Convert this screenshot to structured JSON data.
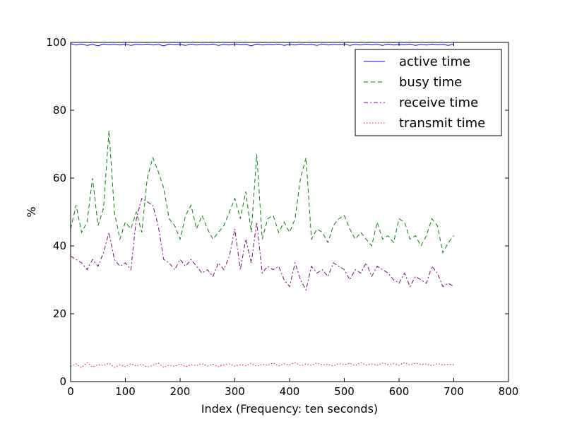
{
  "chart_data": {
    "type": "line",
    "title": "",
    "xlabel": "Index (Frequency: ten seconds)",
    "ylabel": "%",
    "xlim": [
      0,
      800
    ],
    "ylim": [
      0,
      100
    ],
    "xticks": [
      0,
      100,
      200,
      300,
      400,
      500,
      600,
      700,
      800
    ],
    "yticks": [
      0,
      20,
      40,
      60,
      80,
      100
    ],
    "grid": false,
    "legend_position": "top-right",
    "x_start": 0,
    "x_step": 10,
    "series": [
      {
        "name": "active time",
        "color": "#0000ff",
        "style": "solid",
        "values": [
          99.6,
          99.2,
          99.5,
          99.1,
          99.4,
          99.0,
          99.5,
          99.3,
          99.4,
          99.2,
          99.5,
          99.1,
          99.4,
          99.3,
          99.5,
          99.2,
          99.4,
          99.0,
          99.5,
          99.3,
          99.4,
          99.1,
          99.5,
          99.2,
          99.4,
          99.3,
          99.5,
          99.1,
          99.4,
          99.2,
          99.5,
          99.3,
          99.4,
          99.0,
          99.5,
          99.2,
          99.4,
          99.3,
          99.5,
          99.1,
          99.4,
          99.2,
          99.5,
          99.3,
          99.4,
          99.1,
          99.5,
          99.2,
          99.4,
          99.3,
          99.5,
          99.1,
          99.4,
          99.2,
          99.5,
          99.3,
          99.4,
          99.1,
          99.5,
          99.2,
          99.4,
          99.3,
          99.5,
          99.1,
          99.4,
          99.2,
          99.5,
          99.3,
          99.4,
          99.1,
          99.5
        ]
      },
      {
        "name": "busy time",
        "color": "#008000",
        "style": "dashed",
        "values": [
          45,
          52,
          44,
          47,
          60,
          46,
          51,
          74,
          50,
          42,
          47,
          45,
          50,
          44,
          60,
          66,
          62,
          57,
          48,
          46,
          42,
          49,
          52,
          45,
          49,
          45,
          42,
          44,
          46,
          50,
          54,
          48,
          56,
          44,
          67,
          42,
          48,
          49,
          44,
          47,
          44,
          48,
          60,
          66,
          42,
          45,
          44,
          41,
          46,
          48,
          49,
          45,
          42,
          44,
          42,
          40,
          47,
          42,
          43,
          41,
          48,
          47,
          42,
          43,
          40,
          43,
          48,
          46,
          38,
          41,
          43
        ]
      },
      {
        "name": "receive time",
        "color": "#800080",
        "style": "dashdot",
        "values": [
          37,
          36,
          35,
          33,
          36,
          34,
          38,
          44,
          36,
          34,
          35,
          33,
          48,
          54,
          53,
          52,
          46,
          36,
          35,
          33,
          36,
          34,
          36,
          34,
          32,
          33,
          31,
          35,
          33,
          37,
          45,
          33,
          42,
          35,
          47,
          32,
          34,
          33,
          34,
          30,
          28,
          35,
          30,
          27,
          34,
          32,
          33,
          31,
          35,
          34,
          33,
          30,
          33,
          32,
          35,
          31,
          34,
          33,
          32,
          30,
          29,
          32,
          28,
          31,
          30,
          29,
          34,
          32,
          28,
          29,
          28
        ]
      },
      {
        "name": "transmit time",
        "color": "#ff0000",
        "style": "dotted",
        "values": [
          4.5,
          5.2,
          4.1,
          5.6,
          4.3,
          5.0,
          4.8,
          5.4,
          4.2,
          4.9,
          4.4,
          5.3,
          4.6,
          5.1,
          4.3,
          4.8,
          5.5,
          4.2,
          4.9,
          4.5,
          5.2,
          4.4,
          5.0,
          4.7,
          5.3,
          4.6,
          5.1,
          4.4,
          4.9,
          5.2,
          4.5,
          5.0,
          4.7,
          5.4,
          4.5,
          5.1,
          4.8,
          5.5,
          4.6,
          5.3,
          4.9,
          5.6,
          4.7,
          5.2,
          4.8,
          5.5,
          4.9,
          5.1,
          4.6,
          5.3,
          5.0,
          5.4,
          4.7,
          5.6,
          4.9,
          5.2,
          4.8,
          5.5,
          5.0,
          5.3,
          4.8,
          5.6,
          4.9,
          5.4,
          5.1,
          5.2,
          4.7,
          5.3,
          4.9,
          5.1,
          5.0
        ]
      }
    ]
  }
}
